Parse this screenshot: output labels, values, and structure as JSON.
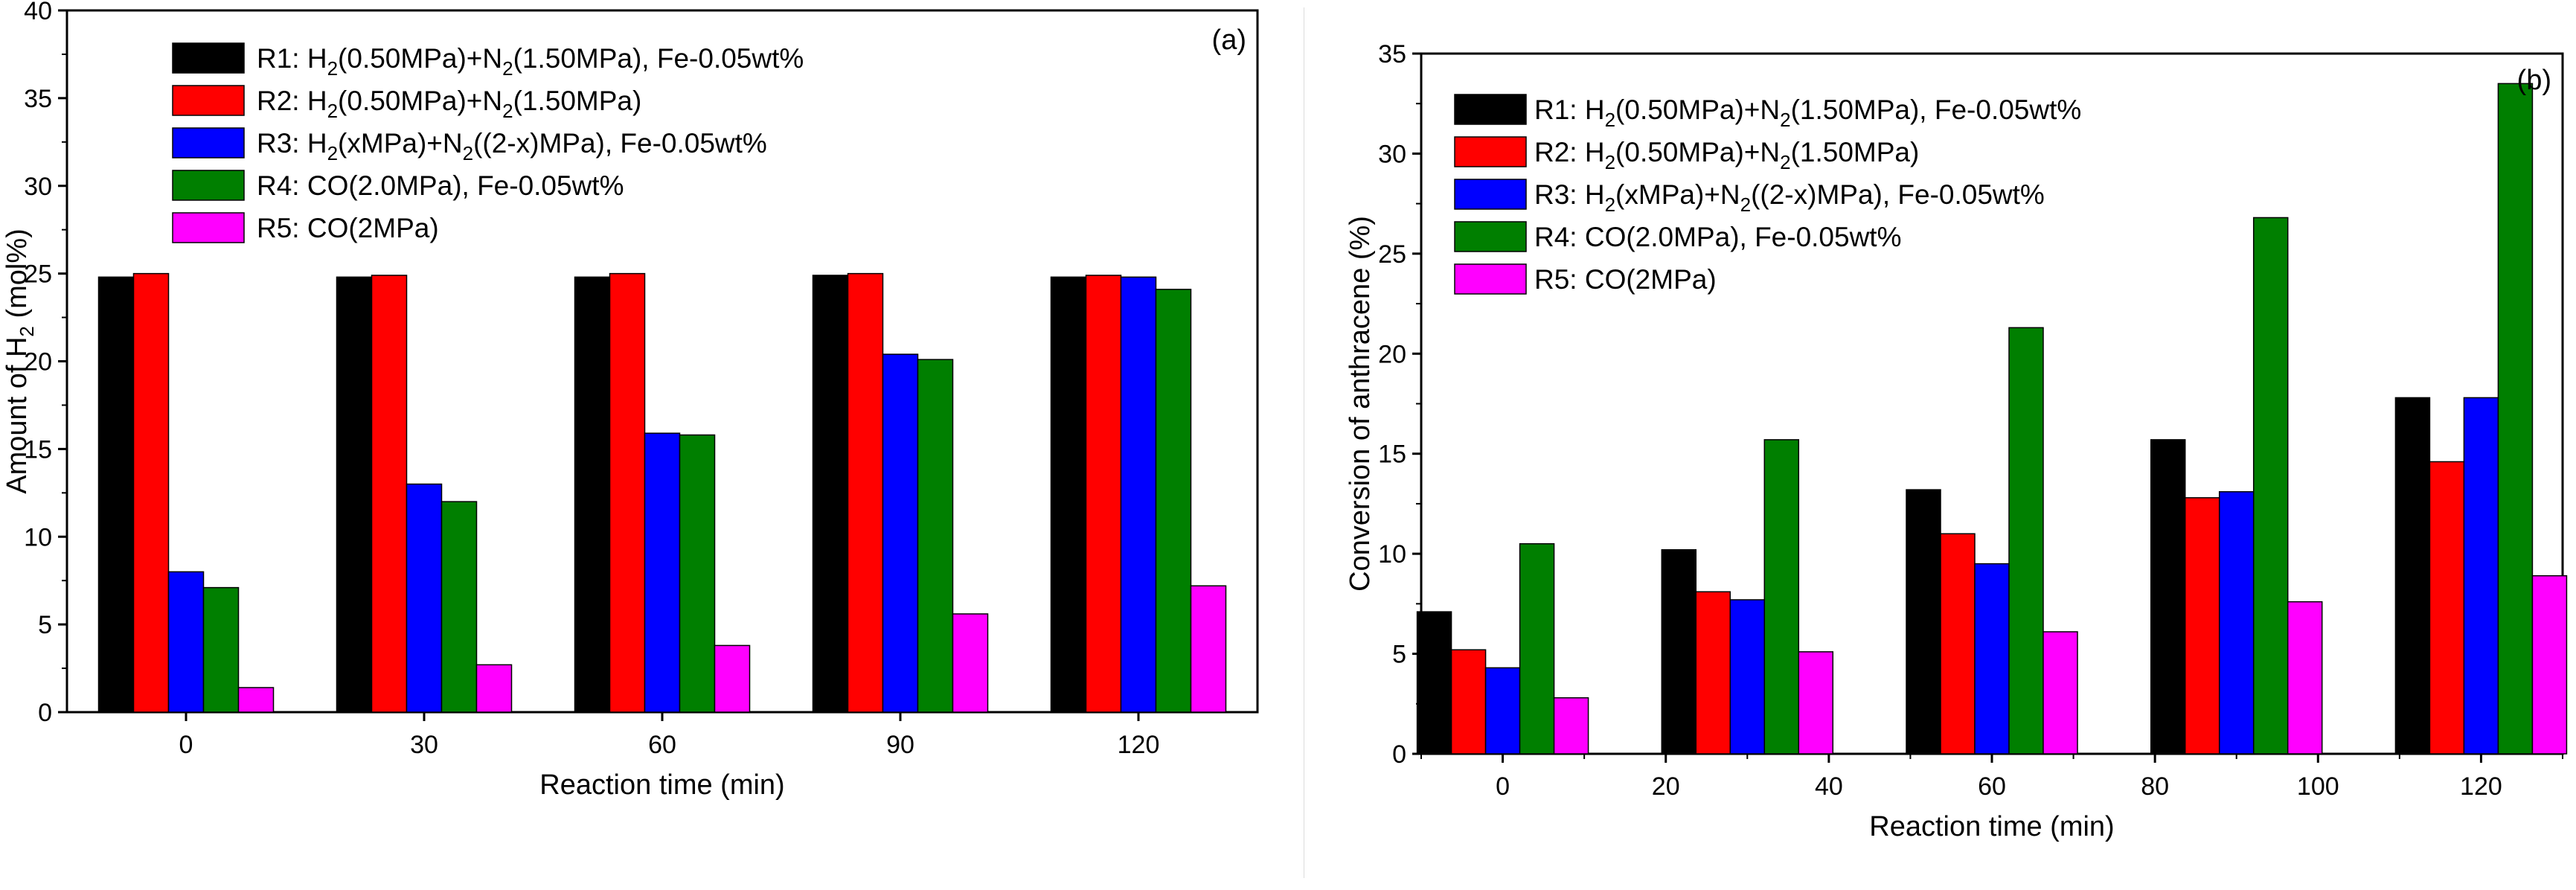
{
  "colors": {
    "R1": "#000000",
    "R2": "#ff0000",
    "R3": "#0000ff",
    "R4": "#007f00",
    "R5": "#ff00ff"
  },
  "legend": [
    {
      "id": "R1",
      "prefix": "R1: H",
      "sub1": "2",
      "mid": "(0.50MPa)+N",
      "sub2": "2",
      "suffix": "(1.50MPa), Fe-0.05wt%"
    },
    {
      "id": "R2",
      "prefix": "R2: H",
      "sub1": "2",
      "mid": "(0.50MPa)+N",
      "sub2": "2",
      "suffix": "(1.50MPa)"
    },
    {
      "id": "R3",
      "prefix": "R3: H",
      "sub1": "2",
      "mid": "(xMPa)+N",
      "sub2": "2",
      "suffix": "((2-x)MPa), Fe-0.05wt%"
    },
    {
      "id": "R4",
      "text": "R4: CO(2.0MPa), Fe-0.05wt%"
    },
    {
      "id": "R5",
      "text": "R5: CO(2MPa)"
    }
  ],
  "chart_data": [
    {
      "type": "bar",
      "panel_label": "(a)",
      "title": "",
      "xlabel": "Reaction time (min)",
      "ylabel_prefix": "Amount of H",
      "ylabel_sub": "2",
      "ylabel_suffix": " (mol%)",
      "categories": [
        "0",
        "30",
        "60",
        "90",
        "120"
      ],
      "ylim": [
        0,
        40
      ],
      "yticks": [
        0,
        5,
        10,
        15,
        20,
        25,
        30,
        35,
        40
      ],
      "series": [
        {
          "name": "R1",
          "values": [
            24.8,
            24.8,
            24.8,
            24.9,
            24.8
          ]
        },
        {
          "name": "R2",
          "values": [
            25.0,
            24.9,
            25.0,
            25.0,
            24.9
          ]
        },
        {
          "name": "R3",
          "values": [
            8.0,
            13.0,
            15.9,
            20.4,
            24.8
          ]
        },
        {
          "name": "R4",
          "values": [
            7.1,
            12.0,
            15.8,
            20.1,
            24.1
          ]
        },
        {
          "name": "R5",
          "values": [
            1.4,
            2.7,
            3.8,
            5.6,
            7.2
          ]
        }
      ],
      "legend_position": "top-left"
    },
    {
      "type": "bar",
      "panel_label": "(b)",
      "title": "",
      "xlabel": "Reaction time (min)",
      "ylabel": "Conversion of anthracene (%)",
      "categories": [
        "0",
        "30",
        "60",
        "90",
        "120"
      ],
      "xlim": [
        -10,
        130
      ],
      "xticks": [
        0,
        20,
        40,
        60,
        80,
        100,
        120
      ],
      "ylim": [
        0,
        35
      ],
      "yticks": [
        0,
        5,
        10,
        15,
        20,
        25,
        30,
        35
      ],
      "series": [
        {
          "name": "R1",
          "values": [
            7.1,
            10.2,
            13.2,
            15.7,
            17.8
          ]
        },
        {
          "name": "R2",
          "values": [
            5.2,
            8.1,
            11.0,
            12.8,
            14.6
          ]
        },
        {
          "name": "R3",
          "values": [
            4.3,
            7.7,
            9.5,
            13.1,
            17.8
          ]
        },
        {
          "name": "R4",
          "values": [
            10.5,
            15.7,
            21.3,
            26.8,
            33.5
          ]
        },
        {
          "name": "R5",
          "values": [
            2.8,
            5.1,
            6.1,
            7.6,
            8.9
          ]
        }
      ],
      "legend_position": "top-left"
    }
  ]
}
